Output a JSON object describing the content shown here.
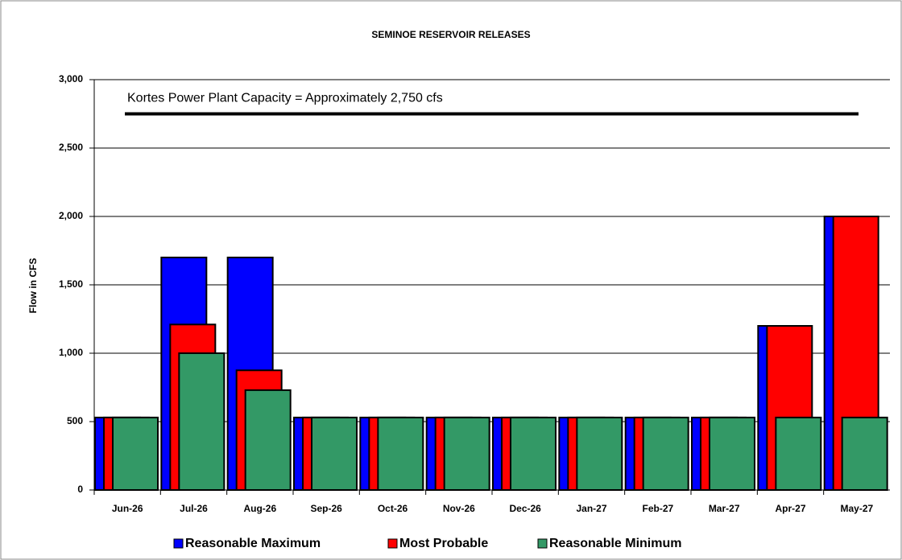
{
  "chart_data": {
    "type": "bar",
    "title": "SEMINOE RESERVOIR RELEASES",
    "y_label": "Flow in CFS",
    "categories": [
      "Jun-26",
      "Jul-26",
      "Aug-26",
      "Sep-26",
      "Oct-26",
      "Nov-26",
      "Dec-26",
      "Jan-27",
      "Feb-27",
      "Mar-27",
      "Apr-27",
      "May-27"
    ],
    "series": [
      {
        "name": "Reasonable Maximum",
        "color": "#0000ff",
        "values": [
          530,
          1700,
          1700,
          530,
          530,
          530,
          530,
          530,
          530,
          530,
          1200,
          2000
        ]
      },
      {
        "name": "Most Probable",
        "color": "#ff0000",
        "values": [
          530,
          1210,
          875,
          530,
          530,
          530,
          530,
          530,
          530,
          530,
          1200,
          2000
        ]
      },
      {
        "name": "Reasonable Minimum",
        "color": "#339966",
        "values": [
          530,
          1000,
          730,
          530,
          530,
          530,
          530,
          530,
          530,
          530,
          530,
          530
        ]
      }
    ],
    "ylim": [
      0,
      3000
    ],
    "yticks": [
      0,
      500,
      {
        "value": 1000,
        "label": "1,000"
      },
      {
        "value": 1500,
        "label": "1,500"
      },
      {
        "value": 2000,
        "label": "2,000"
      },
      {
        "value": 2500,
        "label": "2,500"
      },
      {
        "value": 3000,
        "label": "3,000"
      }
    ],
    "grid": true,
    "reference_line": {
      "value": 2750,
      "label": "Kortes Power Plant Capacity = Approximately 2,750 cfs"
    }
  }
}
